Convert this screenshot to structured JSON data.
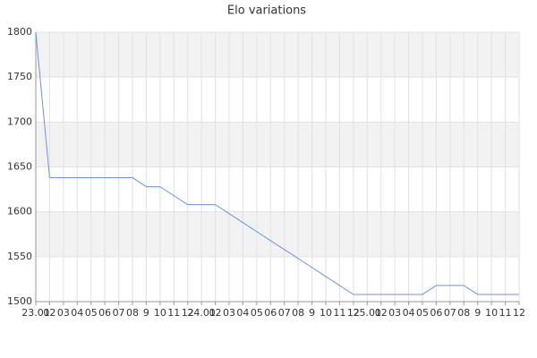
{
  "chart_data": {
    "type": "line",
    "title": "Elo variations",
    "categories": [
      "23.01",
      "02",
      "03",
      "04",
      "05",
      "06",
      "07",
      "08",
      "9",
      "10",
      "11",
      "12",
      "24.01",
      "02",
      "03",
      "04",
      "05",
      "06",
      "07",
      "08",
      "9",
      "10",
      "11",
      "12",
      "25.01",
      "02",
      "03",
      "04",
      "05",
      "06",
      "07",
      "08",
      "9",
      "10",
      "11",
      "12"
    ],
    "series": [
      {
        "name": "Elo",
        "color": "#6b94dc",
        "values": [
          1800,
          1638,
          1638,
          1638,
          1638,
          1638,
          1638,
          1638,
          1628,
          1628,
          1618,
          1608,
          1608,
          1608,
          1598,
          1588,
          1578,
          1568,
          1558,
          1548,
          1538,
          1528,
          1518,
          1508,
          1508,
          1508,
          1508,
          1508,
          1508,
          1518,
          1518,
          1518,
          1508,
          1508,
          1508,
          1508
        ]
      }
    ],
    "ylim": [
      1500,
      1800
    ],
    "yticks": [
      1500,
      1550,
      1600,
      1650,
      1700,
      1750,
      1800
    ],
    "grid": true
  }
}
